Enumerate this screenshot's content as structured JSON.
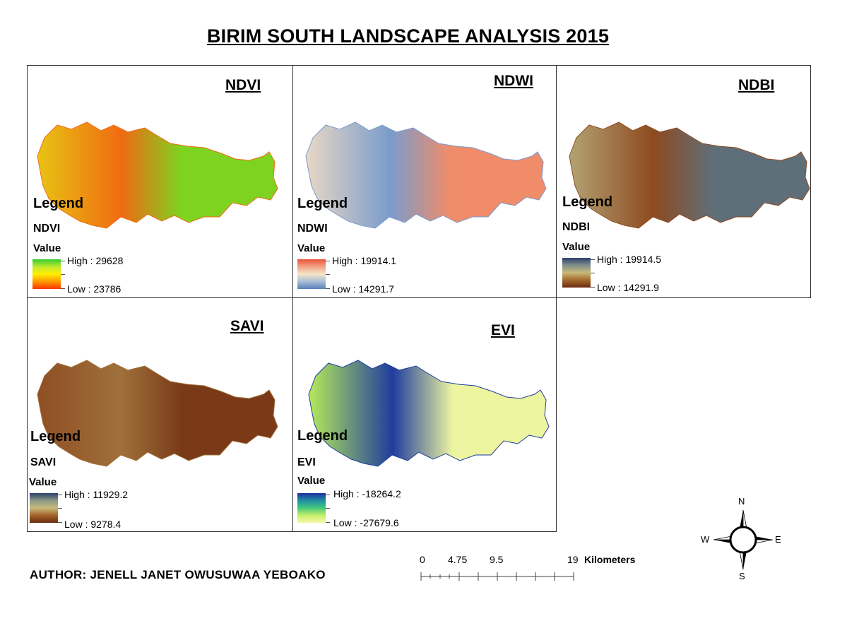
{
  "title": "BIRIM SOUTH LANDSCAPE ANALYSIS 2015",
  "panels": [
    {
      "id": "ndvi",
      "title": "NDVI",
      "legend_label": "Legend",
      "layer": "NDVI",
      "value_label": "Value",
      "high": "High : 29628",
      "low": "Low : 23786",
      "ramp": [
        "#33cc33",
        "#bfe830",
        "#ffee00",
        "#ff9900",
        "#ff3300"
      ],
      "fill": [
        "#7ed321",
        "#e8c413",
        "#f06a12"
      ]
    },
    {
      "id": "ndwi",
      "title": "NDWI",
      "legend_label": "Legend",
      "layer": "NDWI",
      "value_label": "Value",
      "high": "High : 19914.1",
      "low": "Low : 14291.7",
      "ramp": [
        "#e8523a",
        "#f2a385",
        "#f4e5c8",
        "#a8bed6",
        "#5a7fbd"
      ],
      "fill": [
        "#f08c6a",
        "#e9d7c4",
        "#7a9ccc"
      ]
    },
    {
      "id": "ndbi",
      "title": "NDBI",
      "legend_label": "Legend",
      "layer": "NDBI",
      "value_label": "Value",
      "high": "High : 19914.5",
      "low": "Low : 14291.9",
      "ramp": [
        "#2b3f6b",
        "#7f8f8a",
        "#c8b97a",
        "#a4682a",
        "#6b2a0e"
      ],
      "fill": [
        "#5f6f7a",
        "#b2a374",
        "#8e4a1f"
      ]
    },
    {
      "id": "savi",
      "title": "SAVI",
      "legend_label": "Legend",
      "layer": "SAVI",
      "value_label": "Value",
      "high": "High : 11929.2",
      "low": "Low : 9278.4",
      "ramp": [
        "#2b3f6b",
        "#8a9a86",
        "#c9ba7b",
        "#a2622a",
        "#6b2a0e"
      ],
      "fill": [
        "#7a3a18",
        "#8f4e24",
        "#a0703a"
      ]
    },
    {
      "id": "evi",
      "title": "EVI",
      "legend_label": "Legend",
      "layer": "EVI",
      "value_label": "Value",
      "high": "High : -18264.2",
      "low": "Low : -27679.6",
      "ramp": [
        "#1d2fa0",
        "#1e8fa0",
        "#45c87a",
        "#c6ee6a",
        "#f7f9a8"
      ],
      "fill": [
        "#eef5a0",
        "#b6ea5a",
        "#1f3c9e"
      ]
    }
  ],
  "author": "AUTHOR: JENELL JANET OWUSUWAA YEBOAKO",
  "scale": {
    "ticks": [
      "0",
      "4.75",
      "9.5",
      "19"
    ],
    "unit": "Kilometers"
  },
  "compass": {
    "n": "N",
    "s": "S",
    "e": "E",
    "w": "W"
  }
}
